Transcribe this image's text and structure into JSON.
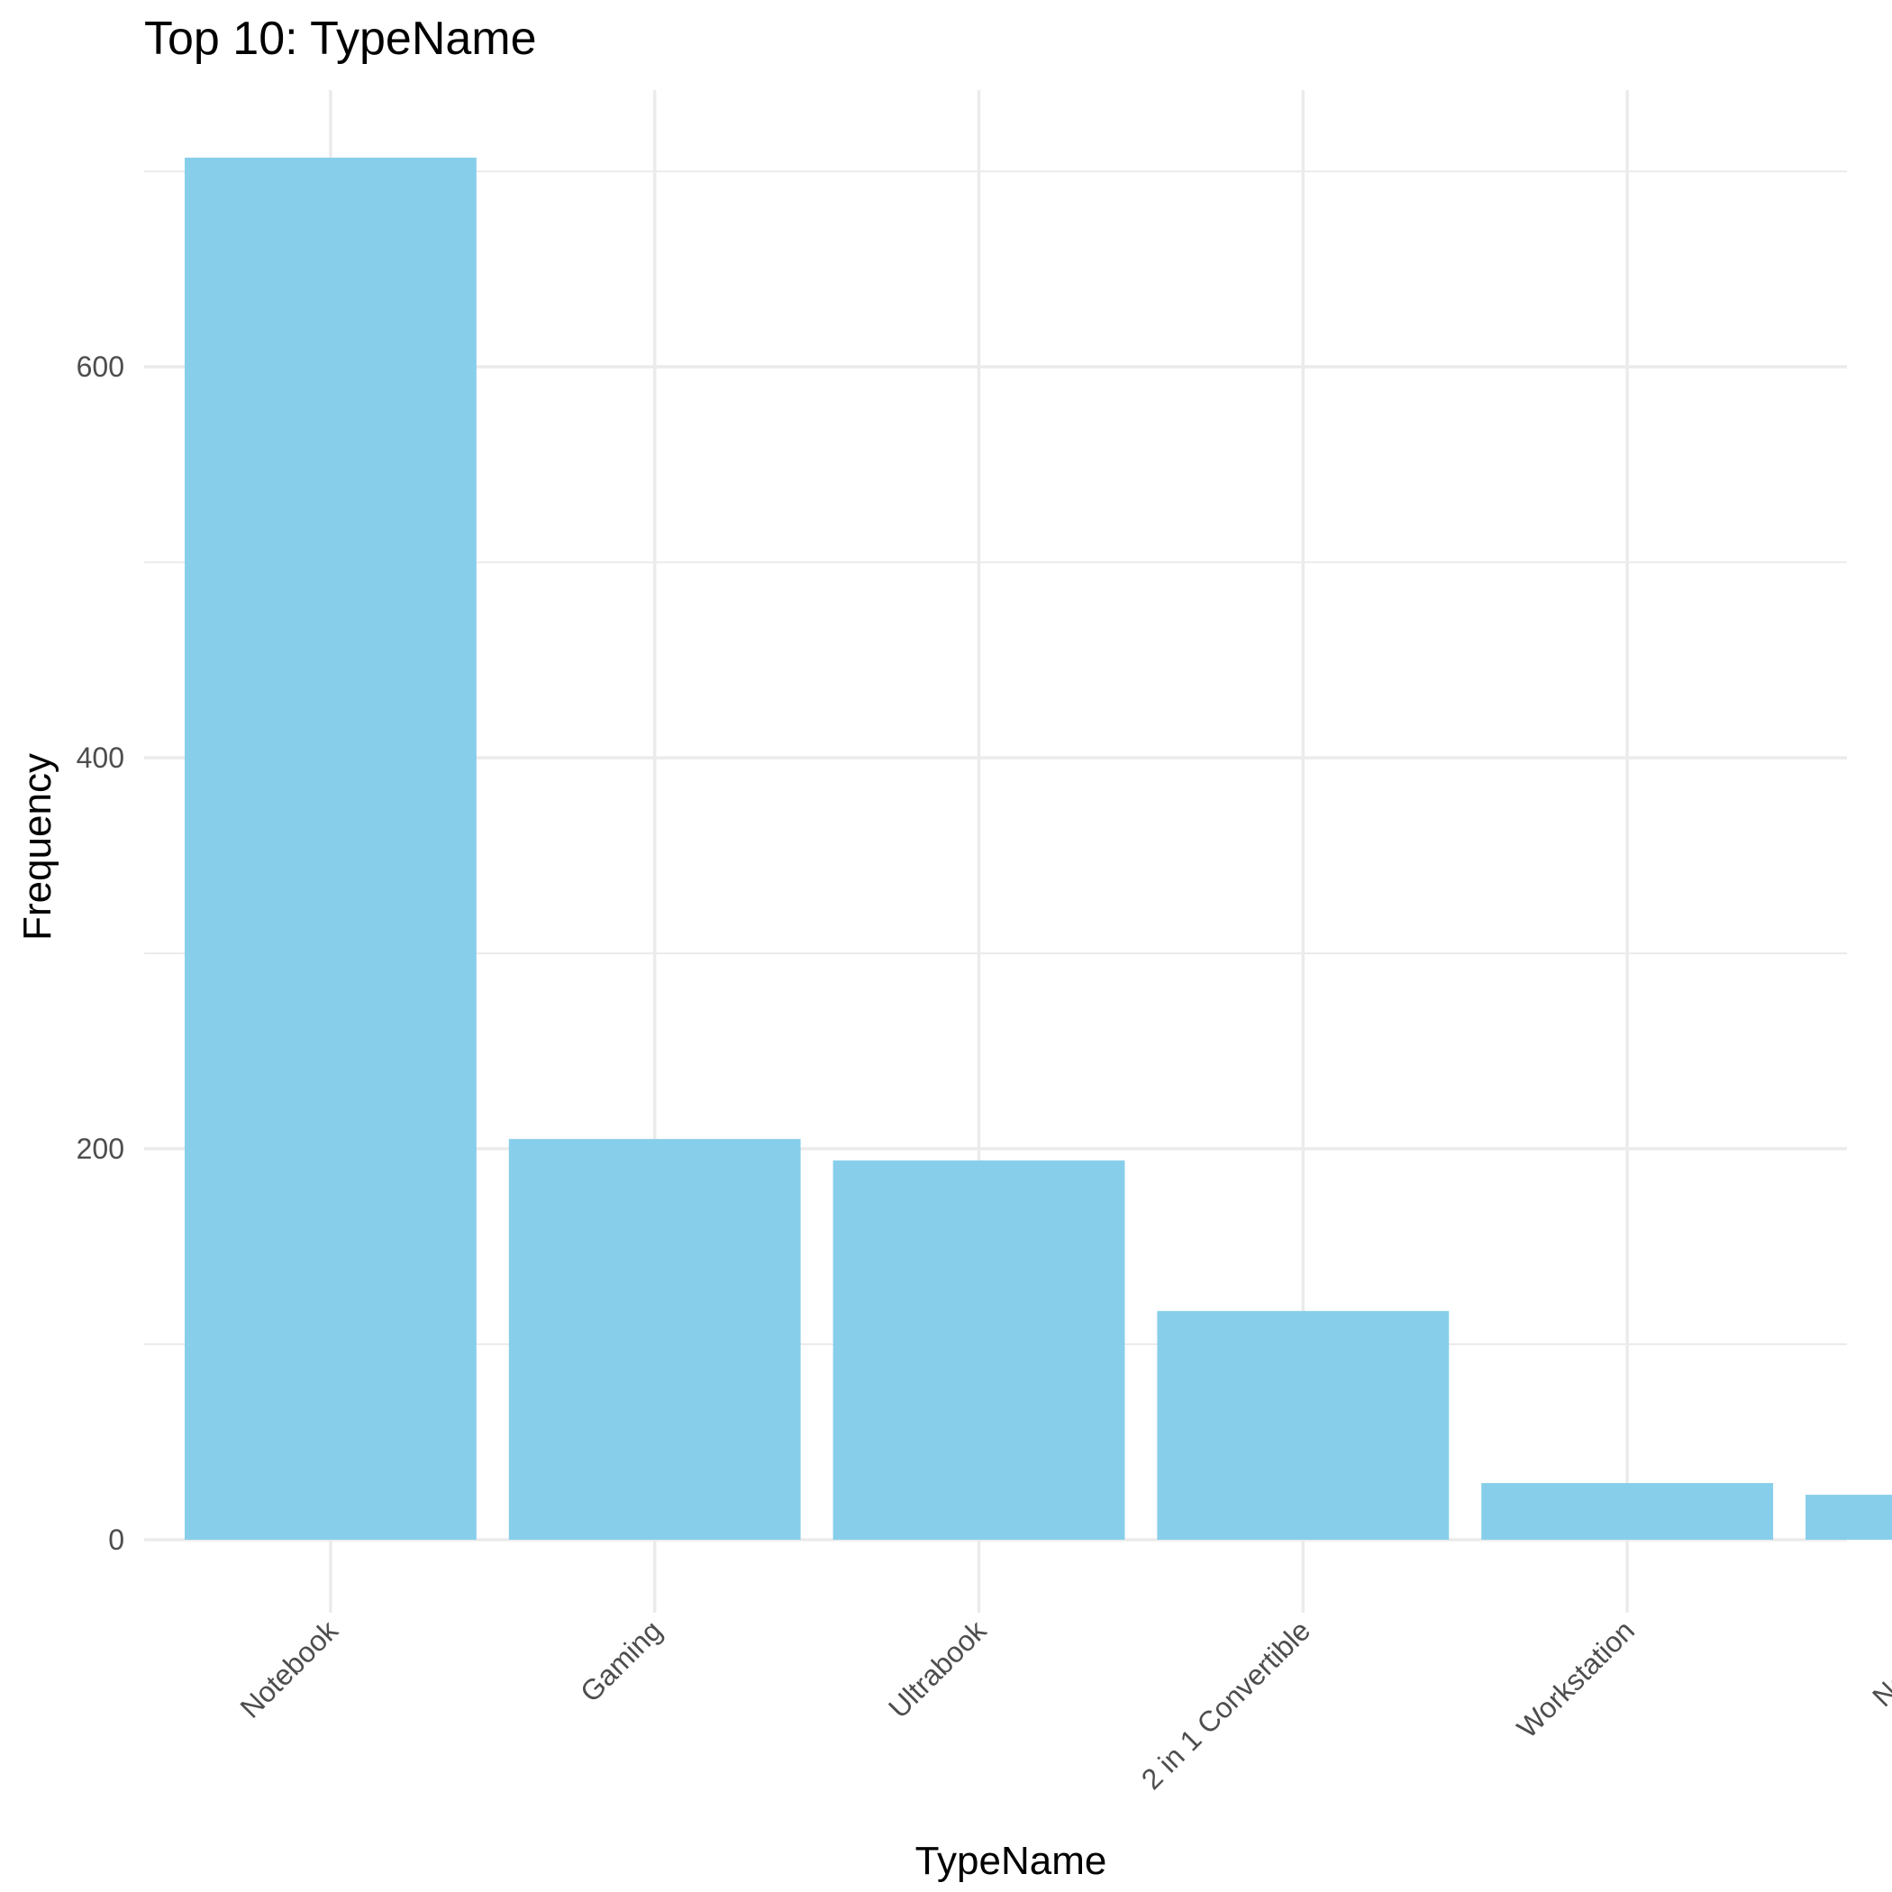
{
  "chart_data": {
    "type": "bar",
    "title": "Top 10:  TypeName",
    "xlabel": "TypeName",
    "ylabel": "Frequency",
    "categories": [
      "Notebook",
      "Gaming",
      "Ultrabook",
      "2 in 1 Convertible",
      "Workstation",
      "Netbook"
    ],
    "values": [
      707,
      205,
      194,
      117,
      29,
      23
    ],
    "ylim": [
      0,
      707
    ],
    "yticks": [
      0,
      200,
      400,
      600
    ],
    "grid": true,
    "bar_color": "#87CEEB",
    "legend": "none"
  }
}
